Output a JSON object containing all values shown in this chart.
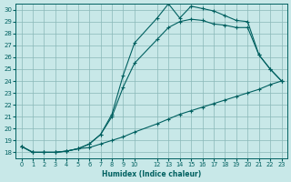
{
  "xlabel": "Humidex (Indice chaleur)",
  "bg_color": "#c8e8e8",
  "grid_color": "#8ab8b8",
  "line_color": "#006060",
  "xlim": [
    -0.5,
    23.5
  ],
  "ylim": [
    17.5,
    30.5
  ],
  "xticks": [
    0,
    1,
    2,
    3,
    4,
    5,
    6,
    7,
    8,
    9,
    10,
    12,
    13,
    14,
    15,
    16,
    17,
    18,
    19,
    20,
    21,
    22,
    23
  ],
  "yticks": [
    18,
    19,
    20,
    21,
    22,
    23,
    24,
    25,
    26,
    27,
    28,
    29,
    30
  ],
  "line1_x": [
    0,
    1,
    2,
    3,
    4,
    5,
    6,
    7,
    8,
    9,
    10,
    12,
    13,
    14,
    15,
    16,
    17,
    18,
    19,
    20,
    21,
    22,
    23
  ],
  "line1_y": [
    18.5,
    18.0,
    18.0,
    18.0,
    18.1,
    18.3,
    18.4,
    18.7,
    19.0,
    19.3,
    19.7,
    20.4,
    20.8,
    21.2,
    21.5,
    21.8,
    22.1,
    22.4,
    22.7,
    23.0,
    23.3,
    23.7,
    24.0
  ],
  "line2_x": [
    0,
    1,
    2,
    3,
    4,
    5,
    6,
    7,
    8,
    9,
    10,
    12,
    13,
    14,
    15,
    16,
    17,
    18,
    19,
    20,
    21,
    22,
    23
  ],
  "line2_y": [
    18.5,
    18.0,
    18.0,
    18.0,
    18.1,
    18.3,
    18.7,
    19.5,
    21.0,
    23.5,
    25.5,
    27.5,
    28.5,
    29.0,
    29.2,
    29.1,
    28.8,
    28.7,
    28.5,
    28.5,
    26.2,
    25.0,
    24.0
  ],
  "line3_x": [
    0,
    1,
    2,
    3,
    4,
    5,
    6,
    7,
    8,
    9,
    10,
    12,
    13,
    14,
    15,
    16,
    17,
    18,
    19,
    20,
    21,
    22,
    23
  ],
  "line3_y": [
    18.5,
    18.0,
    18.0,
    18.0,
    18.1,
    18.3,
    18.7,
    19.5,
    21.2,
    24.5,
    27.2,
    29.3,
    30.5,
    29.3,
    30.3,
    30.1,
    29.9,
    29.5,
    29.1,
    29.0,
    26.2,
    25.0,
    24.0
  ]
}
